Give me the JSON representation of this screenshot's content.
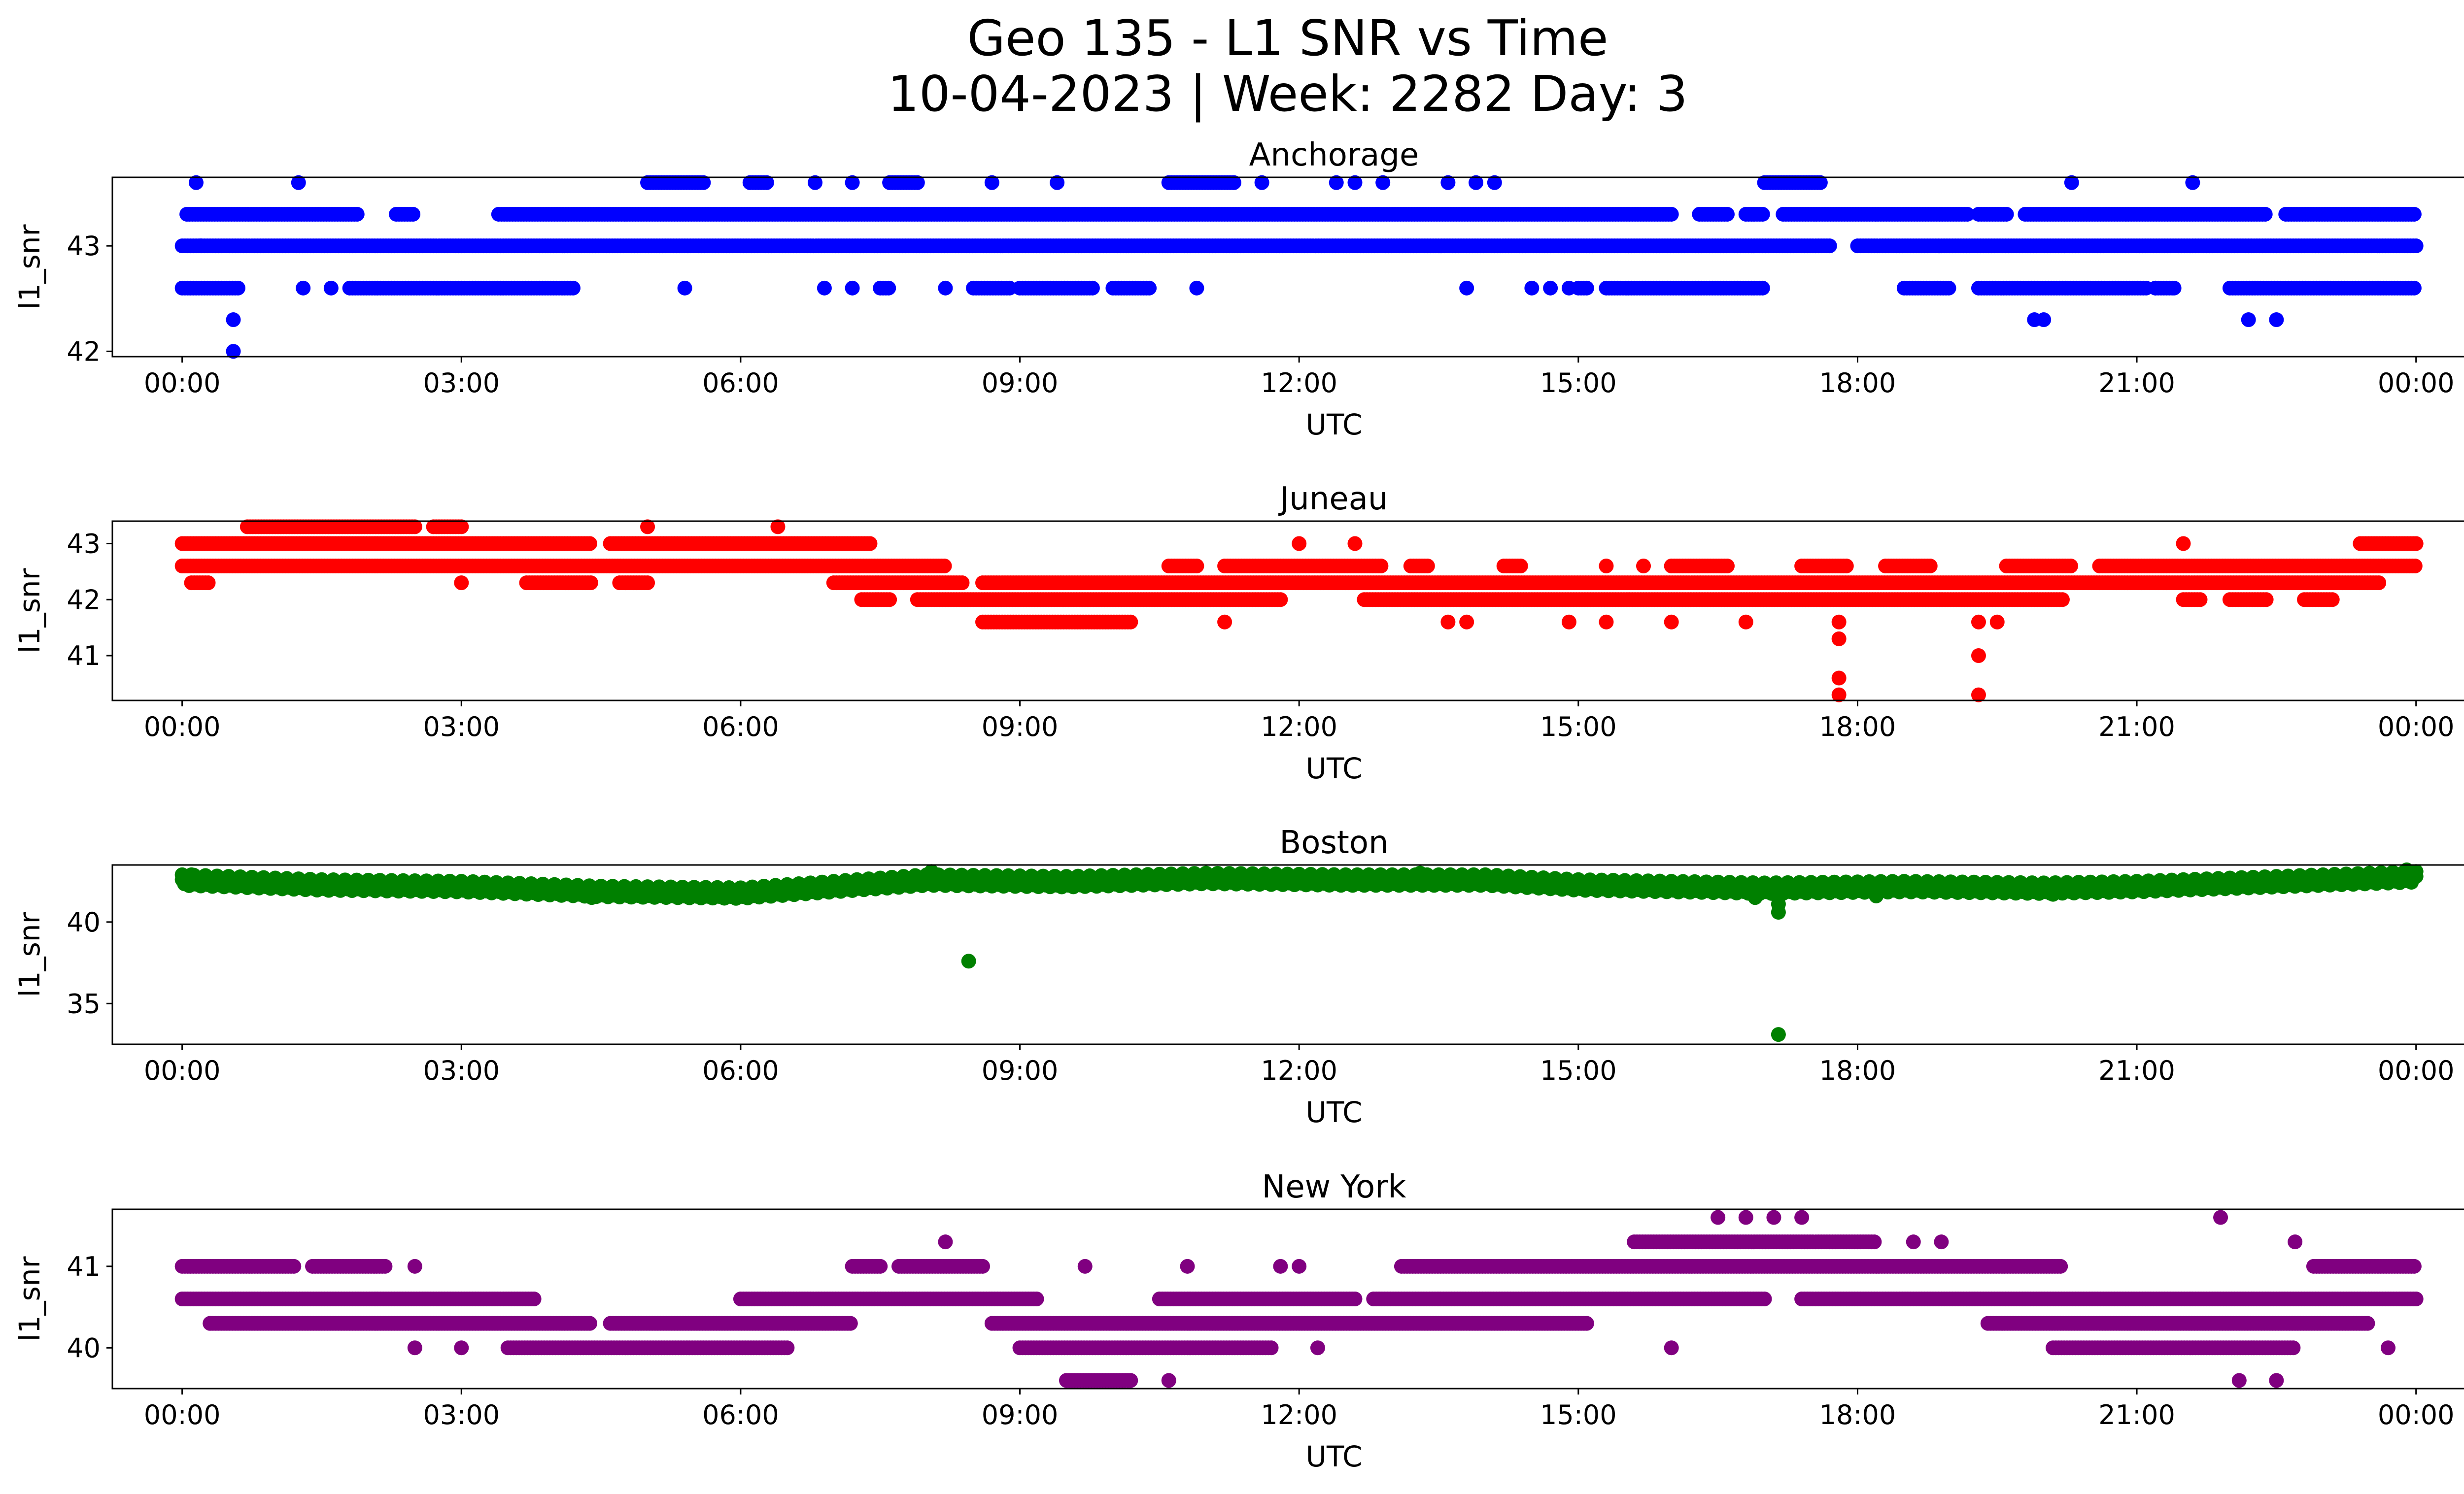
{
  "figure": {
    "title_line1": "Geo 135 - L1 SNR vs Time",
    "title_line2": "10-04-2023 | Week: 2282 Day: 3"
  },
  "chart_data": [
    {
      "type": "scatter",
      "title": "Anchorage",
      "xlabel": "UTC",
      "ylabel": "l1_snr",
      "color": "#0000ff",
      "xlim": [
        -0.75,
        25.5
      ],
      "ylim": [
        41.95,
        43.65
      ],
      "xticks": [
        "00:00",
        "03:00",
        "06:00",
        "09:00",
        "12:00",
        "15:00",
        "18:00",
        "21:00",
        "00:00"
      ],
      "yticks": [
        42,
        43
      ],
      "bands": [
        {
          "y": 43.0,
          "segments": [
            [
              0.0,
              17.7
            ],
            [
              18.0,
              24.0
            ]
          ]
        },
        {
          "y": 43.3,
          "segments": [
            [
              0.05,
              1.9
            ],
            [
              2.3,
              2.5
            ],
            [
              3.4,
              16.0
            ],
            [
              16.3,
              16.6
            ],
            [
              16.8,
              17.0
            ],
            [
              17.2,
              19.2
            ],
            [
              19.3,
              19.6
            ],
            [
              19.8,
              22.4
            ],
            [
              22.6,
              24.0
            ]
          ]
        },
        {
          "y": 42.6,
          "segments": [
            [
              0.0,
              0.6
            ],
            [
              1.8,
              4.2
            ],
            [
              7.5,
              7.6
            ],
            [
              8.5,
              8.9
            ],
            [
              9.0,
              9.8
            ],
            [
              10.0,
              10.4
            ],
            [
              15.0,
              15.1
            ],
            [
              15.3,
              17.0
            ],
            [
              18.5,
              19.0
            ],
            [
              19.3,
              21.1
            ],
            [
              21.2,
              21.4
            ],
            [
              22.0,
              24.0
            ]
          ]
        },
        {
          "y": 43.6,
          "segments": [
            [
              5.0,
              5.6
            ],
            [
              6.1,
              6.3
            ],
            [
              7.6,
              7.9
            ],
            [
              10.6,
              11.3
            ],
            [
              17.0,
              17.6
            ]
          ]
        }
      ],
      "points": [
        [
          0.15,
          43.6
        ],
        [
          1.25,
          43.6
        ],
        [
          0.55,
          42.3
        ],
        [
          0.55,
          42.0
        ],
        [
          0.2,
          43.0
        ],
        [
          1.3,
          42.6
        ],
        [
          1.6,
          42.6
        ],
        [
          5.4,
          42.6
        ],
        [
          6.8,
          43.6
        ],
        [
          7.2,
          43.6
        ],
        [
          6.9,
          42.6
        ],
        [
          7.2,
          42.6
        ],
        [
          8.2,
          42.6
        ],
        [
          8.7,
          43.6
        ],
        [
          9.4,
          43.6
        ],
        [
          10.9,
          42.6
        ],
        [
          11.3,
          43.6
        ],
        [
          11.6,
          43.6
        ],
        [
          12.4,
          43.6
        ],
        [
          12.6,
          43.6
        ],
        [
          12.9,
          43.6
        ],
        [
          13.6,
          43.6
        ],
        [
          13.9,
          43.6
        ],
        [
          14.1,
          43.6
        ],
        [
          13.8,
          42.6
        ],
        [
          14.5,
          42.6
        ],
        [
          14.7,
          42.6
        ],
        [
          14.9,
          42.6
        ],
        [
          20.3,
          43.6
        ],
        [
          21.6,
          43.6
        ],
        [
          19.9,
          42.3
        ],
        [
          20.0,
          42.3
        ],
        [
          22.2,
          42.3
        ],
        [
          22.5,
          42.3
        ],
        [
          21.2,
          42.6
        ],
        [
          21.4,
          42.6
        ]
      ]
    },
    {
      "type": "scatter",
      "title": "Juneau",
      "xlabel": "UTC",
      "ylabel": "l1_snr",
      "color": "#ff0000",
      "xlim": [
        -0.75,
        25.5
      ],
      "ylim": [
        40.2,
        43.4
      ],
      "xticks": [
        "00:00",
        "03:00",
        "06:00",
        "09:00",
        "12:00",
        "15:00",
        "18:00",
        "21:00",
        "00:00"
      ],
      "yticks": [
        41,
        42,
        43
      ],
      "bands": [
        {
          "y": 43.0,
          "segments": [
            [
              0.0,
              4.4
            ],
            [
              4.6,
              7.4
            ],
            [
              23.4,
              24.0
            ]
          ]
        },
        {
          "y": 42.6,
          "segments": [
            [
              0.0,
              8.2
            ],
            [
              10.6,
              10.9
            ],
            [
              11.2,
              12.9
            ],
            [
              13.2,
              13.4
            ],
            [
              14.2,
              14.4
            ],
            [
              16.0,
              16.6
            ],
            [
              17.4,
              17.9
            ],
            [
              18.3,
              18.8
            ],
            [
              19.6,
              20.3
            ],
            [
              20.6,
              24.0
            ]
          ]
        },
        {
          "y": 42.3,
          "segments": [
            [
              0.1,
              0.3
            ],
            [
              3.7,
              4.4
            ],
            [
              4.7,
              5.0
            ],
            [
              7.0,
              8.4
            ],
            [
              8.6,
              23.6
            ]
          ]
        },
        {
          "y": 42.0,
          "segments": [
            [
              7.3,
              7.6
            ],
            [
              7.9,
              11.8
            ],
            [
              12.7,
              20.2
            ],
            [
              21.5,
              21.7
            ],
            [
              22.0,
              22.4
            ],
            [
              22.8,
              23.1
            ]
          ]
        },
        {
          "y": 41.6,
          "segments": [
            [
              8.6,
              10.2
            ]
          ]
        },
        {
          "y": 43.3,
          "segments": [
            [
              0.7,
              2.5
            ],
            [
              2.7,
              3.0
            ]
          ]
        }
      ],
      "points": [
        [
          5.0,
          43.3
        ],
        [
          6.4,
          43.3
        ],
        [
          3.0,
          42.3
        ],
        [
          11.2,
          41.6
        ],
        [
          13.6,
          41.6
        ],
        [
          13.8,
          41.6
        ],
        [
          14.9,
          41.6
        ],
        [
          15.3,
          41.6
        ],
        [
          16.0,
          41.6
        ],
        [
          16.8,
          41.6
        ],
        [
          17.8,
          41.6
        ],
        [
          17.8,
          41.3
        ],
        [
          17.8,
          40.6
        ],
        [
          17.8,
          40.3
        ],
        [
          19.3,
          41.6
        ],
        [
          19.5,
          41.6
        ],
        [
          19.3,
          41.0
        ],
        [
          19.3,
          40.3
        ],
        [
          21.5,
          43.0
        ],
        [
          12.0,
          43.0
        ],
        [
          12.6,
          43.0
        ],
        [
          15.3,
          42.6
        ],
        [
          15.7,
          42.6
        ]
      ]
    },
    {
      "type": "scatter",
      "title": "Boston",
      "xlabel": "UTC",
      "ylabel": "l1_snr",
      "color": "#008000",
      "xlim": [
        -0.75,
        25.5
      ],
      "ylim": [
        32.5,
        43.5
      ],
      "xticks": [
        "00:00",
        "03:00",
        "06:00",
        "09:00",
        "12:00",
        "15:00",
        "18:00",
        "21:00",
        "00:00"
      ],
      "yticks": [
        35,
        40
      ],
      "trend": [
        [
          0.0,
          42.6
        ],
        [
          1.5,
          42.3
        ],
        [
          3.0,
          42.2
        ],
        [
          4.5,
          41.9
        ],
        [
          6.0,
          41.8
        ],
        [
          7.0,
          42.2
        ],
        [
          8.0,
          42.6
        ],
        [
          9.5,
          42.5
        ],
        [
          11.0,
          42.7
        ],
        [
          12.5,
          42.6
        ],
        [
          14.0,
          42.6
        ],
        [
          15.0,
          42.3
        ],
        [
          17.0,
          42.1
        ],
        [
          18.5,
          42.2
        ],
        [
          20.0,
          42.1
        ],
        [
          21.0,
          42.2
        ],
        [
          22.5,
          42.5
        ],
        [
          24.0,
          42.8
        ]
      ],
      "points": [
        [
          8.45,
          37.6
        ],
        [
          17.15,
          33.1
        ],
        [
          17.15,
          40.6
        ],
        [
          17.15,
          41.1
        ],
        [
          8.05,
          43.1
        ],
        [
          23.9,
          43.2
        ],
        [
          0.1,
          42.9
        ],
        [
          16.9,
          41.5
        ],
        [
          18.2,
          41.6
        ],
        [
          4.4,
          41.5
        ],
        [
          2.1,
          42.5
        ],
        [
          13.3,
          43.0
        ],
        [
          20.1,
          41.7
        ]
      ]
    },
    {
      "type": "scatter",
      "title": "New York",
      "xlabel": "UTC",
      "ylabel": "l1_snr",
      "color": "#800080",
      "xlim": [
        -0.75,
        25.5
      ],
      "ylim": [
        39.5,
        41.7
      ],
      "xticks": [
        "00:00",
        "03:00",
        "06:00",
        "09:00",
        "12:00",
        "15:00",
        "18:00",
        "21:00",
        "00:00"
      ],
      "yticks": [
        40,
        41
      ],
      "bands": [
        {
          "y": 41.0,
          "segments": [
            [
              0.0,
              1.2
            ],
            [
              1.4,
              2.2
            ],
            [
              7.2,
              7.5
            ],
            [
              7.7,
              8.6
            ],
            [
              13.1,
              20.2
            ],
            [
              22.9,
              24.0
            ]
          ]
        },
        {
          "y": 40.6,
          "segments": [
            [
              0.0,
              3.8
            ],
            [
              6.0,
              9.2
            ],
            [
              10.5,
              12.6
            ],
            [
              12.8,
              17.0
            ],
            [
              17.4,
              24.0
            ]
          ]
        },
        {
          "y": 40.3,
          "segments": [
            [
              0.3,
              4.4
            ],
            [
              4.6,
              7.2
            ],
            [
              8.7,
              15.1
            ],
            [
              19.4,
              23.5
            ]
          ]
        },
        {
          "y": 40.0,
          "segments": [
            [
              3.5,
              6.5
            ],
            [
              9.0,
              11.7
            ],
            [
              20.1,
              22.7
            ]
          ]
        },
        {
          "y": 41.3,
          "segments": [
            [
              15.6,
              18.2
            ]
          ]
        },
        {
          "y": 39.6,
          "segments": [
            [
              9.5,
              10.2
            ]
          ]
        }
      ],
      "points": [
        [
          8.2,
          41.3
        ],
        [
          16.5,
          41.6
        ],
        [
          16.8,
          41.6
        ],
        [
          17.1,
          41.6
        ],
        [
          17.4,
          41.6
        ],
        [
          21.9,
          41.6
        ],
        [
          22.7,
          41.3
        ],
        [
          16.0,
          40.0
        ],
        [
          12.2,
          40.0
        ],
        [
          2.5,
          40.0
        ],
        [
          3.0,
          40.0
        ],
        [
          0.3,
          40.3
        ],
        [
          11.8,
          41.0
        ],
        [
          12.0,
          41.0
        ],
        [
          10.8,
          41.0
        ],
        [
          9.7,
          41.0
        ],
        [
          18.6,
          41.3
        ],
        [
          18.9,
          41.3
        ],
        [
          22.1,
          39.6
        ],
        [
          22.5,
          39.6
        ],
        [
          23.7,
          40.0
        ],
        [
          10.6,
          39.6
        ],
        [
          2.5,
          41.0
        ]
      ]
    }
  ]
}
